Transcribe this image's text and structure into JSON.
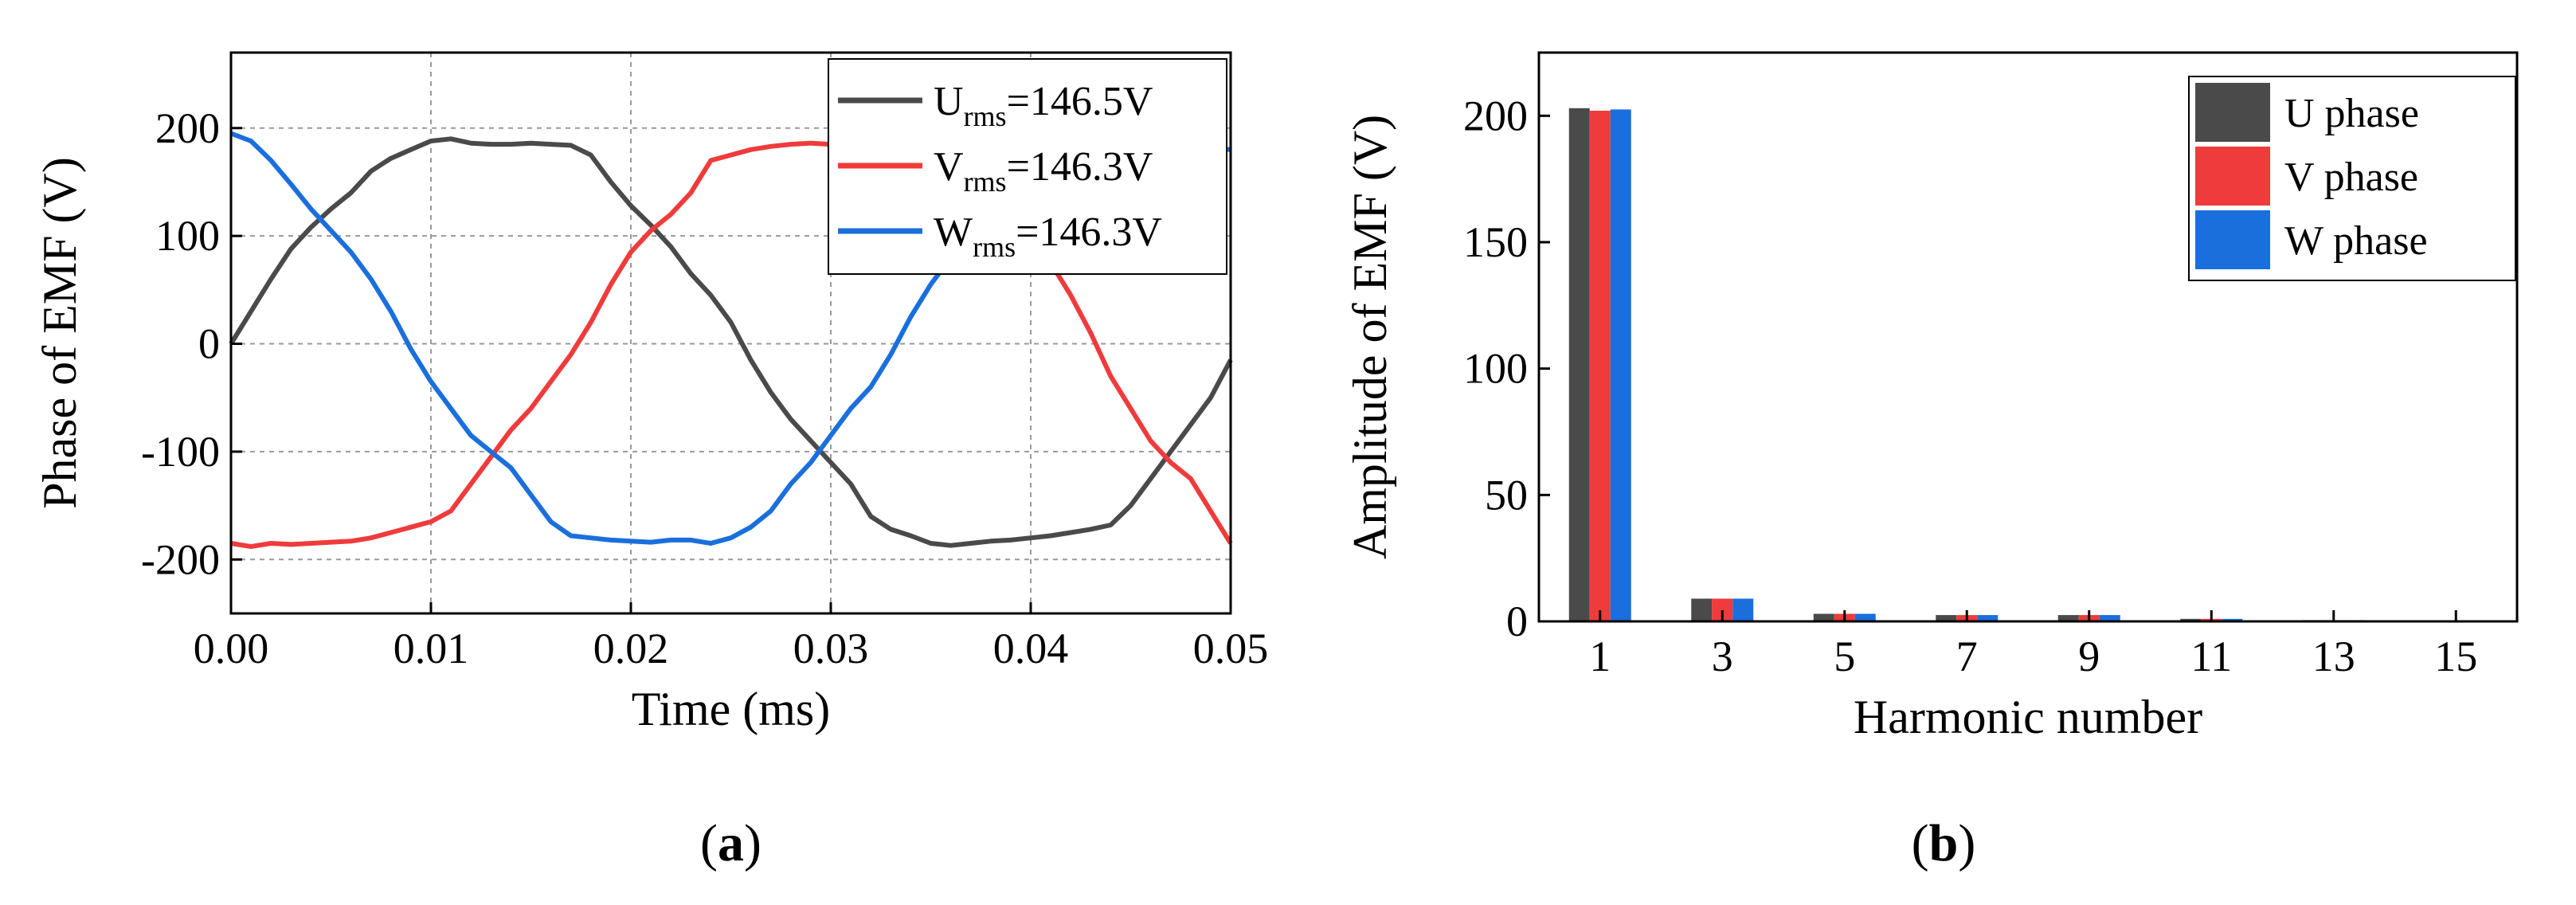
{
  "chart_data": [
    {
      "type": "line",
      "panel_label": "(a)",
      "panel_letter": "a",
      "xlabel": "Time (ms)",
      "ylabel": "Phase of EMF (V)",
      "xlim": [
        0,
        0.05
      ],
      "ylim": [
        -250,
        270
      ],
      "xticks": [
        0,
        0.01,
        0.02,
        0.03,
        0.04,
        0.05
      ],
      "xtick_labels": [
        "0.00",
        "0.01",
        "0.02",
        "0.03",
        "0.04",
        "0.05"
      ],
      "yticks": [
        -200,
        -100,
        0,
        100,
        200
      ],
      "ytick_labels": [
        "-200",
        "-100",
        "0",
        "100",
        "200"
      ],
      "grid": true,
      "legend_position": "top-right",
      "series": [
        {
          "label_main": "U",
          "label_sub": "rms",
          "label_value": "=146.5V",
          "color": "#4a4a4a",
          "points": [
            [
              0,
              0
            ],
            [
              0.001,
              30
            ],
            [
              0.002,
              60
            ],
            [
              0.003,
              88
            ],
            [
              0.004,
              108
            ],
            [
              0.005,
              125
            ],
            [
              0.006,
              140
            ],
            [
              0.007,
              160
            ],
            [
              0.008,
              172
            ],
            [
              0.009,
              180
            ],
            [
              0.01,
              188
            ],
            [
              0.011,
              190
            ],
            [
              0.012,
              186
            ],
            [
              0.013,
              185
            ],
            [
              0.014,
              185
            ],
            [
              0.015,
              186
            ],
            [
              0.016,
              185
            ],
            [
              0.017,
              184
            ],
            [
              0.018,
              175
            ],
            [
              0.019,
              150
            ],
            [
              0.02,
              128
            ],
            [
              0.021,
              110
            ],
            [
              0.022,
              90
            ],
            [
              0.023,
              65
            ],
            [
              0.024,
              45
            ],
            [
              0.025,
              20
            ],
            [
              0.026,
              -15
            ],
            [
              0.027,
              -45
            ],
            [
              0.028,
              -70
            ],
            [
              0.029,
              -90
            ],
            [
              0.03,
              -110
            ],
            [
              0.031,
              -130
            ],
            [
              0.032,
              -160
            ],
            [
              0.033,
              -172
            ],
            [
              0.034,
              -178
            ],
            [
              0.035,
              -185
            ],
            [
              0.036,
              -187
            ],
            [
              0.037,
              -185
            ],
            [
              0.038,
              -183
            ],
            [
              0.039,
              -182
            ],
            [
              0.04,
              -180
            ],
            [
              0.041,
              -178
            ],
            [
              0.042,
              -175
            ],
            [
              0.043,
              -172
            ],
            [
              0.044,
              -168
            ],
            [
              0.045,
              -150
            ],
            [
              0.046,
              -125
            ],
            [
              0.047,
              -100
            ],
            [
              0.048,
              -75
            ],
            [
              0.049,
              -50
            ],
            [
              0.05,
              -15
            ]
          ]
        },
        {
          "label_main": "V",
          "label_sub": "rms",
          "label_value": "=146.3V",
          "color": "#ef3b3b",
          "points": [
            [
              0,
              -185
            ],
            [
              0.001,
              -188
            ],
            [
              0.002,
              -185
            ],
            [
              0.003,
              -186
            ],
            [
              0.004,
              -185
            ],
            [
              0.005,
              -184
            ],
            [
              0.006,
              -183
            ],
            [
              0.007,
              -180
            ],
            [
              0.008,
              -175
            ],
            [
              0.009,
              -170
            ],
            [
              0.01,
              -165
            ],
            [
              0.011,
              -155
            ],
            [
              0.012,
              -130
            ],
            [
              0.013,
              -105
            ],
            [
              0.014,
              -80
            ],
            [
              0.015,
              -60
            ],
            [
              0.016,
              -35
            ],
            [
              0.017,
              -10
            ],
            [
              0.018,
              20
            ],
            [
              0.019,
              55
            ],
            [
              0.02,
              85
            ],
            [
              0.021,
              105
            ],
            [
              0.022,
              120
            ],
            [
              0.023,
              140
            ],
            [
              0.024,
              170
            ],
            [
              0.025,
              175
            ],
            [
              0.026,
              180
            ],
            [
              0.027,
              183
            ],
            [
              0.028,
              185
            ],
            [
              0.029,
              186
            ],
            [
              0.03,
              185
            ],
            [
              0.031,
              186
            ],
            [
              0.032,
              185
            ],
            [
              0.033,
              187
            ],
            [
              0.034,
              188
            ],
            [
              0.035,
              190
            ],
            [
              0.036,
              188
            ],
            [
              0.037,
              186
            ],
            [
              0.038,
              185
            ],
            [
              0.039,
              150
            ],
            [
              0.04,
              110
            ],
            [
              0.041,
              75
            ],
            [
              0.042,
              45
            ],
            [
              0.043,
              10
            ],
            [
              0.044,
              -30
            ],
            [
              0.045,
              -60
            ],
            [
              0.046,
              -90
            ],
            [
              0.047,
              -110
            ],
            [
              0.048,
              -125
            ],
            [
              0.049,
              -155
            ],
            [
              0.05,
              -185
            ]
          ]
        },
        {
          "label_main": "W",
          "label_sub": "rms",
          "label_value": "=146.3V",
          "color": "#1a6fdc",
          "points": [
            [
              0,
              195
            ],
            [
              0.001,
              188
            ],
            [
              0.002,
              170
            ],
            [
              0.003,
              148
            ],
            [
              0.004,
              125
            ],
            [
              0.005,
              105
            ],
            [
              0.006,
              85
            ],
            [
              0.007,
              60
            ],
            [
              0.008,
              30
            ],
            [
              0.009,
              -5
            ],
            [
              0.01,
              -35
            ],
            [
              0.011,
              -60
            ],
            [
              0.012,
              -85
            ],
            [
              0.013,
              -100
            ],
            [
              0.014,
              -115
            ],
            [
              0.015,
              -140
            ],
            [
              0.016,
              -165
            ],
            [
              0.017,
              -178
            ],
            [
              0.018,
              -180
            ],
            [
              0.019,
              -182
            ],
            [
              0.02,
              -183
            ],
            [
              0.021,
              -184
            ],
            [
              0.022,
              -182
            ],
            [
              0.023,
              -182
            ],
            [
              0.024,
              -185
            ],
            [
              0.025,
              -180
            ],
            [
              0.026,
              -170
            ],
            [
              0.027,
              -155
            ],
            [
              0.028,
              -130
            ],
            [
              0.029,
              -110
            ],
            [
              0.03,
              -85
            ],
            [
              0.031,
              -60
            ],
            [
              0.032,
              -40
            ],
            [
              0.033,
              -10
            ],
            [
              0.034,
              25
            ],
            [
              0.035,
              55
            ],
            [
              0.036,
              80
            ],
            [
              0.037,
              100
            ],
            [
              0.038,
              125
            ],
            [
              0.039,
              150
            ],
            [
              0.04,
              168
            ],
            [
              0.041,
              175
            ],
            [
              0.042,
              178
            ],
            [
              0.043,
              180
            ],
            [
              0.044,
              182
            ],
            [
              0.045,
              183
            ],
            [
              0.046,
              184
            ],
            [
              0.047,
              183
            ],
            [
              0.048,
              182
            ],
            [
              0.049,
              181
            ],
            [
              0.05,
              180
            ]
          ]
        }
      ]
    },
    {
      "type": "bar",
      "panel_label": "(b)",
      "panel_letter": "b",
      "xlabel": "Harmonic number",
      "ylabel": "Amplitude of EMF (V)",
      "ylim": [
        0,
        225
      ],
      "yticks": [
        0,
        50,
        100,
        150,
        200
      ],
      "ytick_labels": [
        "0",
        "50",
        "100",
        "150",
        "200"
      ],
      "categories": [
        "1",
        "3",
        "5",
        "7",
        "9",
        "11",
        "13",
        "15"
      ],
      "legend_position": "top-right",
      "series": [
        {
          "name": "U phase",
          "color": "#4a4a4a",
          "values": [
            203,
            9,
            3,
            2.5,
            2.5,
            1,
            0.5,
            0.2
          ]
        },
        {
          "name": "V phase",
          "color": "#ef3b3b",
          "values": [
            202,
            9,
            3,
            2.5,
            2.5,
            1,
            0.5,
            0.2
          ]
        },
        {
          "name": "W phase",
          "color": "#1a6fdc",
          "values": [
            202.5,
            9,
            3,
            2.5,
            2.5,
            1,
            0.5,
            0.2
          ]
        }
      ]
    }
  ]
}
